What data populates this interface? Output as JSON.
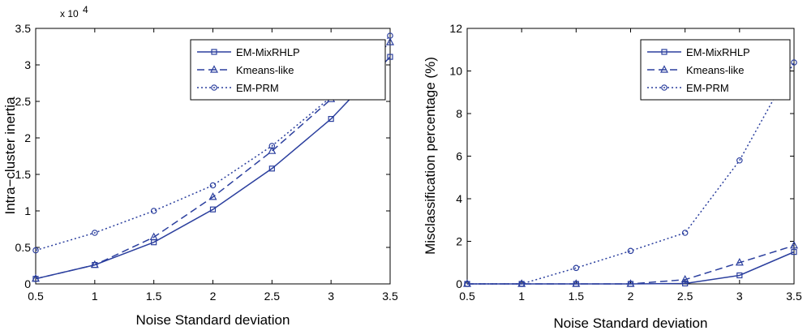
{
  "chart_data": [
    {
      "type": "line",
      "xlabel": "Noise Standard deviation",
      "ylabel": "Intra−cluster inertia",
      "exponent_label": "x 10",
      "exponent_power": "4",
      "x": [
        0.5,
        1,
        1.5,
        2,
        2.5,
        3,
        3.5
      ],
      "xticks": [
        "0.5",
        "1",
        "1.5",
        "2",
        "2.5",
        "3",
        "3.5"
      ],
      "yticks": [
        "0",
        "0.5",
        "1",
        "1.5",
        "2",
        "2.5",
        "3",
        "3.5"
      ],
      "xlim": [
        0.5,
        3.5
      ],
      "ylim": [
        0,
        3.5
      ],
      "legend_position": "top-right",
      "grid": false,
      "series": [
        {
          "name": "EM-MixRHLP",
          "values": [
            0.07,
            0.26,
            0.57,
            1.02,
            1.58,
            2.26,
            3.11
          ],
          "marker": "square",
          "dash": "solid"
        },
        {
          "name": "Kmeans-like",
          "values": [
            0.07,
            0.26,
            0.64,
            1.19,
            1.82,
            2.53,
            3.31
          ],
          "marker": "triangle",
          "dash": "dashed"
        },
        {
          "name": "EM-PRM",
          "values": [
            0.46,
            0.7,
            1.0,
            1.35,
            1.89,
            2.56,
            3.4
          ],
          "marker": "circle",
          "dash": "dotted"
        }
      ]
    },
    {
      "type": "line",
      "xlabel": "Noise Standard deviation",
      "ylabel": "Misclassification percentage (%)",
      "x": [
        0.5,
        1,
        1.5,
        2,
        2.5,
        3,
        3.5
      ],
      "xticks": [
        "0.5",
        "1",
        "1.5",
        "2",
        "2.5",
        "3",
        "3.5"
      ],
      "yticks": [
        "0",
        "2",
        "4",
        "6",
        "8",
        "10",
        "12"
      ],
      "xlim": [
        0.5,
        3.5
      ],
      "ylim": [
        0,
        12
      ],
      "legend_position": "top-right",
      "grid": false,
      "series": [
        {
          "name": "EM-MixRHLP",
          "values": [
            0,
            0,
            0,
            0,
            0.02,
            0.4,
            1.5
          ],
          "marker": "square",
          "dash": "solid"
        },
        {
          "name": "Kmeans-like",
          "values": [
            0,
            0,
            0,
            0,
            0.2,
            1.0,
            1.8
          ],
          "marker": "triangle",
          "dash": "dashed"
        },
        {
          "name": "EM-PRM",
          "values": [
            0,
            0,
            0.75,
            1.55,
            2.4,
            5.8,
            10.4
          ],
          "marker": "circle",
          "dash": "dotted"
        }
      ]
    }
  ],
  "colors": {
    "line": "#2b3f9e",
    "axis": "#000000"
  }
}
